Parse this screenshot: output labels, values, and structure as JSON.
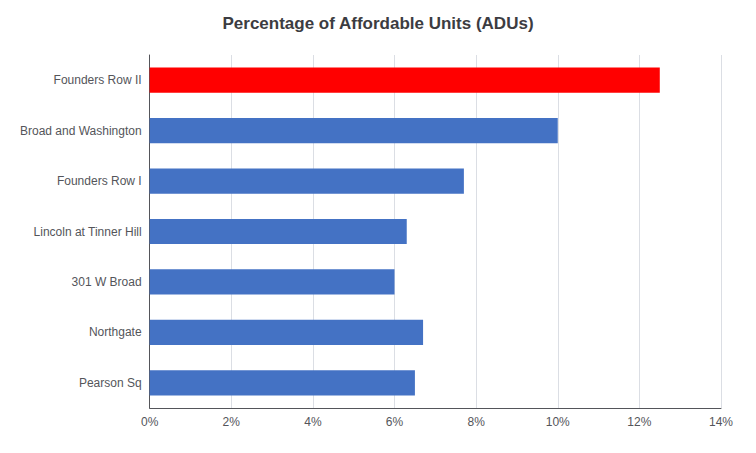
{
  "chart_data": {
    "type": "bar",
    "orientation": "horizontal",
    "title": "Percentage of Affordable Units (ADUs)",
    "categories": [
      "Pearson Sq",
      "Northgate",
      "301 W Broad",
      "Lincoln at Tinner Hill",
      "Founders Row I",
      "Broad and Washington",
      "Founders Row II"
    ],
    "values": [
      0.065,
      0.067,
      0.06,
      0.063,
      0.077,
      0.1,
      0.125
    ],
    "colors": [
      "#4472c4",
      "#4472c4",
      "#4472c4",
      "#4472c4",
      "#4472c4",
      "#4472c4",
      "#ff0000"
    ],
    "xlim": [
      0,
      0.14
    ],
    "xticks": [
      {
        "value": 0,
        "label": "0%"
      },
      {
        "value": 0.02,
        "label": "2%"
      },
      {
        "value": 0.04,
        "label": "4%"
      },
      {
        "value": 0.06,
        "label": "6%"
      },
      {
        "value": 0.08,
        "label": "8%"
      },
      {
        "value": 0.1,
        "label": "10%"
      },
      {
        "value": 0.12,
        "label": "12%"
      },
      {
        "value": 0.14,
        "label": "14%"
      }
    ],
    "grid": true
  }
}
